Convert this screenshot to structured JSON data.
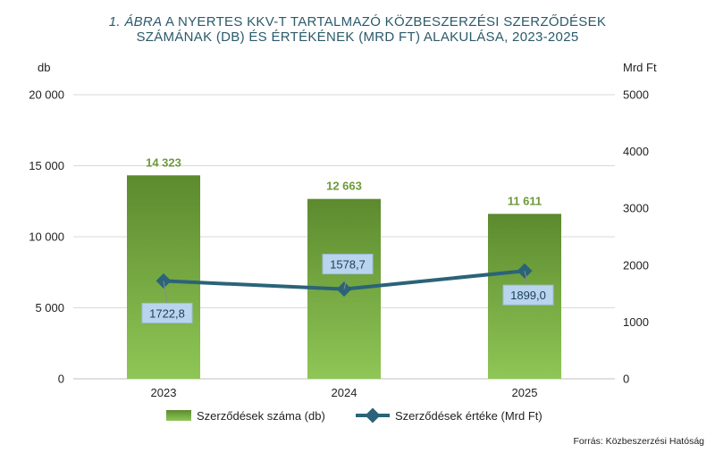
{
  "title": {
    "part1": "1. ÁBRA",
    "part2": " A NYERTES KKV-T TARTALMAZÓ KÖZBESZERZÉSI SZERZŐDÉSEK",
    "line2": "SZÁMÁNAK (DB)  ÉS ÉRTÉKÉNEK (MRD FT)  ALAKULÁSA, 2023-2025"
  },
  "source": "Forrás: Közbeszerzési  Hatóság",
  "colors": {
    "title": "#2b5a6b",
    "bar_top": "#5c8a2e",
    "bar_bottom": "#8fc656",
    "bar_label": "#6b9a3a",
    "line": "#2b6378",
    "label_box_fill": "#b8d4ee",
    "label_box_stroke": "#9cbddf",
    "grid": "#d9d9d9"
  },
  "chart_data": {
    "type": "bar+line",
    "categories": [
      "2023",
      "2024",
      "2025"
    ],
    "series": [
      {
        "name": "Szerződések száma (db)",
        "type": "bar",
        "axis": "left",
        "values": [
          14323,
          12663,
          11611
        ],
        "labels": [
          "14 323",
          "12 663",
          "11 611"
        ]
      },
      {
        "name": "Szerződések értéke (Mrd Ft)",
        "type": "line",
        "axis": "right",
        "values": [
          1722.8,
          1578.7,
          1899.0
        ],
        "labels": [
          "1722,8",
          "1578,7",
          "1899,0"
        ]
      }
    ],
    "y_left": {
      "label": "db",
      "range": [
        0,
        20000
      ],
      "ticks": [
        0,
        5000,
        10000,
        15000,
        20000
      ],
      "tick_labels": [
        "0",
        "5 000",
        "10 000",
        "15 000",
        "20 000"
      ]
    },
    "y_right": {
      "label": "Mrd Ft",
      "range": [
        0,
        5000
      ],
      "ticks": [
        0,
        1000,
        2000,
        3000,
        4000,
        5000
      ],
      "tick_labels": [
        "0",
        "1000",
        "2000",
        "3000",
        "4000",
        "5000"
      ]
    },
    "grid": true,
    "legend_position": "bottom"
  }
}
